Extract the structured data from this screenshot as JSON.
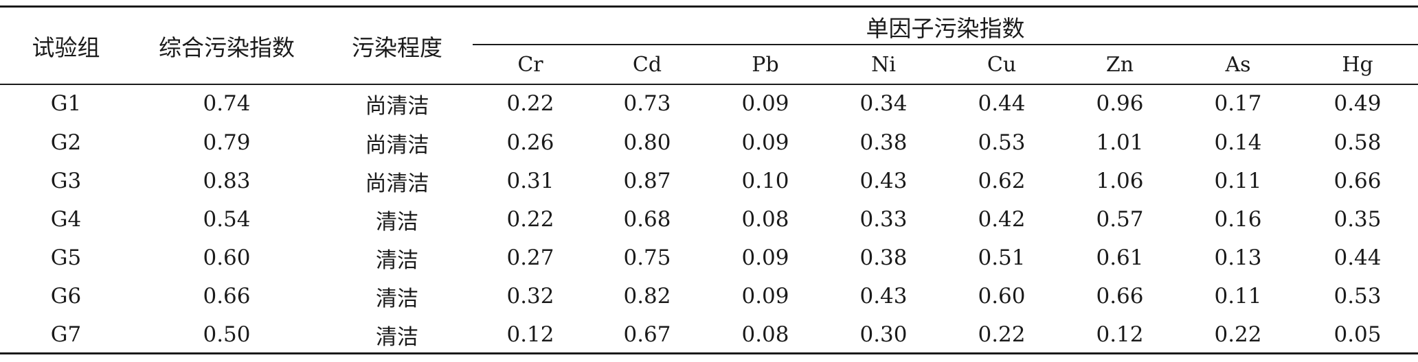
{
  "table": {
    "headers": {
      "group": "试验组",
      "composite_index": "综合污染指数",
      "pollution_level": "污染程度",
      "single_factor": "单因子污染指数",
      "elements": [
        "Cr",
        "Cd",
        "Pb",
        "Ni",
        "Cu",
        "Zn",
        "As",
        "Hg"
      ]
    },
    "rows": [
      {
        "group": "G1",
        "composite": "0.74",
        "level": "尚清洁",
        "values": [
          "0.22",
          "0.73",
          "0.09",
          "0.34",
          "0.44",
          "0.96",
          "0.17",
          "0.49"
        ]
      },
      {
        "group": "G2",
        "composite": "0.79",
        "level": "尚清洁",
        "values": [
          "0.26",
          "0.80",
          "0.09",
          "0.38",
          "0.53",
          "1.01",
          "0.14",
          "0.58"
        ]
      },
      {
        "group": "G3",
        "composite": "0.83",
        "level": "尚清洁",
        "values": [
          "0.31",
          "0.87",
          "0.10",
          "0.43",
          "0.62",
          "1.06",
          "0.11",
          "0.66"
        ]
      },
      {
        "group": "G4",
        "composite": "0.54",
        "level": "清洁",
        "values": [
          "0.22",
          "0.68",
          "0.08",
          "0.33",
          "0.42",
          "0.57",
          "0.16",
          "0.35"
        ]
      },
      {
        "group": "G5",
        "composite": "0.60",
        "level": "清洁",
        "values": [
          "0.27",
          "0.75",
          "0.09",
          "0.38",
          "0.51",
          "0.61",
          "0.13",
          "0.44"
        ]
      },
      {
        "group": "G6",
        "composite": "0.66",
        "level": "清洁",
        "values": [
          "0.32",
          "0.82",
          "0.09",
          "0.43",
          "0.60",
          "0.66",
          "0.11",
          "0.53"
        ]
      },
      {
        "group": "G7",
        "composite": "0.50",
        "level": "清洁",
        "values": [
          "0.12",
          "0.67",
          "0.08",
          "0.30",
          "0.22",
          "0.12",
          "0.22",
          "0.05"
        ]
      }
    ]
  }
}
